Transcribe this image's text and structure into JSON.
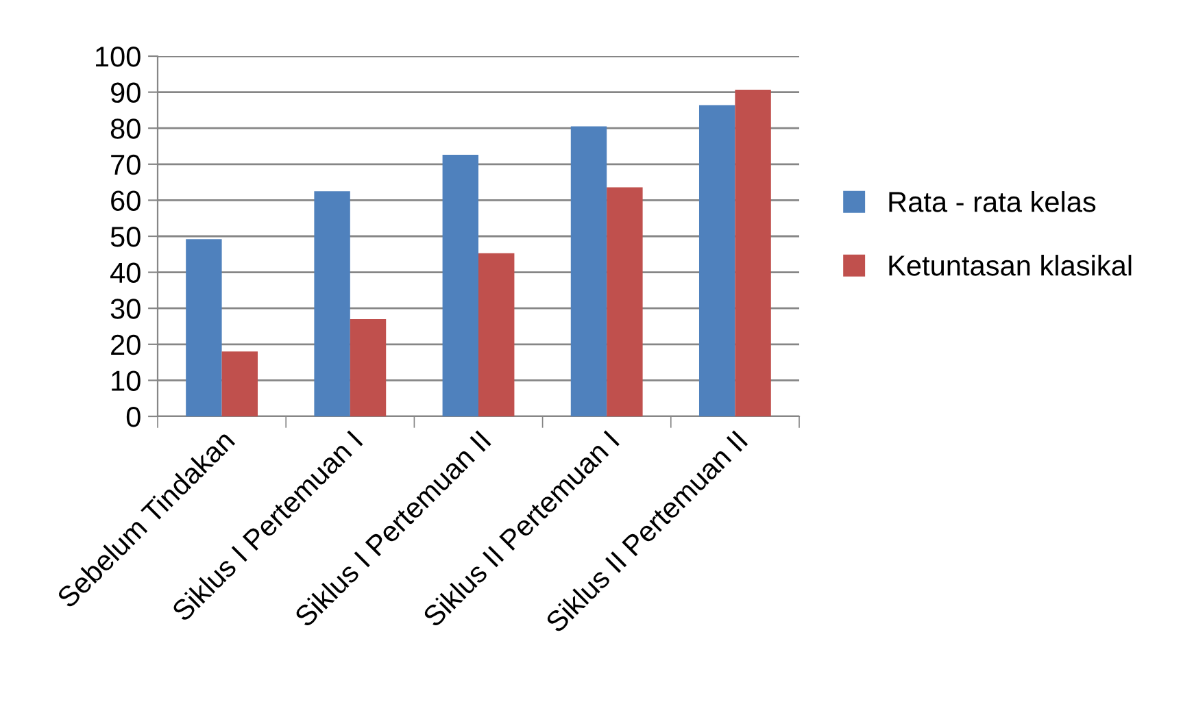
{
  "chart_data": {
    "type": "bar",
    "categories": [
      "Sebelum Tindakan",
      "Siklus I Pertemuan I",
      "Siklus I Pertemuan II",
      "Siklus II Pertemuan I",
      "Siklus II Pertemuan II"
    ],
    "series": [
      {
        "name": "Rata - rata kelas",
        "color": "#4f81bd",
        "values": [
          49.2,
          62.5,
          72.6,
          80.5,
          86.4
        ]
      },
      {
        "name": "Ketuntasan klasikal",
        "color": "#c0504d",
        "values": [
          18.0,
          27.0,
          45.3,
          63.6,
          90.7
        ]
      }
    ],
    "ylim": [
      0,
      100
    ],
    "yticks": [
      0,
      10,
      20,
      30,
      40,
      50,
      60,
      70,
      80,
      90,
      100
    ],
    "grid": "y",
    "legend": "right"
  }
}
